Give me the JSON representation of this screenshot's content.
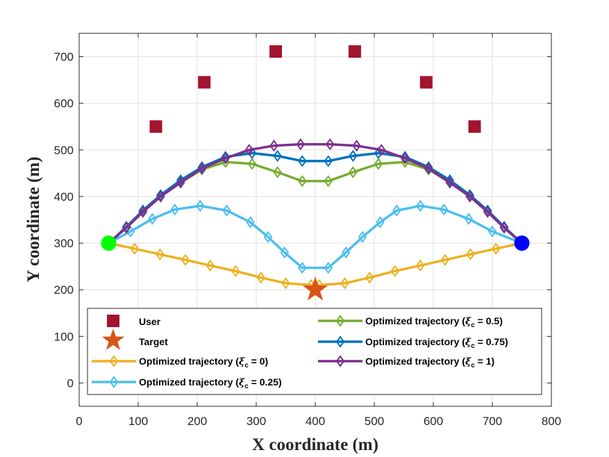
{
  "chart_data": {
    "type": "line",
    "title": "",
    "xlabel": "X coordinate (m)",
    "ylabel": "Y coordinate (m)",
    "xlim": [
      0,
      800
    ],
    "ylim": [
      -50,
      750
    ],
    "xticks": [
      0,
      100,
      200,
      300,
      400,
      500,
      600,
      700,
      800
    ],
    "yticks": [
      0,
      100,
      200,
      300,
      400,
      500,
      600,
      700
    ],
    "xtick_labels": [
      "0",
      "100",
      "200",
      "300",
      "400",
      "500",
      "600",
      "700",
      "800"
    ],
    "ytick_labels": [
      "0",
      "100",
      "200",
      "300",
      "400",
      "500",
      "600",
      "700"
    ],
    "grid": true,
    "legend_position": "bottom",
    "users": {
      "name": "User",
      "color": "#a2142f",
      "points": [
        [
          130,
          550
        ],
        [
          212,
          645
        ],
        [
          333,
          711
        ],
        [
          467,
          711
        ],
        [
          588,
          645
        ],
        [
          670,
          550
        ]
      ]
    },
    "target": {
      "name": "Target",
      "color": "#d95319",
      "point": [
        400,
        200
      ]
    },
    "start_point": {
      "point": [
        50,
        300
      ],
      "color": "#00ff00"
    },
    "end_point": {
      "point": [
        750,
        300
      ],
      "color": "#0000ff"
    },
    "series": [
      {
        "name": "Optimized trajectory (ξc = 0)",
        "label_main": "Optimized trajectory (",
        "label_xi": "ξ",
        "label_sub": "c",
        "label_tail": " = 0)",
        "color": "#edb120",
        "x": [
          50,
          94,
          137,
          180,
          222,
          265,
          308,
          350,
          393,
          407,
          450,
          492,
          535,
          578,
          620,
          663,
          706,
          750
        ],
        "y": [
          300,
          288,
          276,
          264,
          252,
          240,
          226,
          214,
          210,
          210,
          214,
          226,
          240,
          252,
          264,
          276,
          288,
          300
        ]
      },
      {
        "name": "Optimized trajectory (ξc = 0.25)",
        "label_main": "Optimized trajectory (",
        "label_xi": "ξ",
        "label_sub": "c",
        "label_tail": " = 0.25)",
        "color": "#4dbeee",
        "x": [
          50,
          87,
          124,
          162,
          205,
          250,
          290,
          320,
          348,
          378,
          422,
          452,
          480,
          510,
          538,
          578,
          618,
          660,
          700,
          750
        ],
        "y": [
          300,
          325,
          352,
          372,
          380,
          370,
          345,
          313,
          280,
          247,
          247,
          280,
          313,
          345,
          370,
          380,
          372,
          352,
          325,
          300
        ]
      },
      {
        "name": "Optimized trajectory (ξc = 0.5)",
        "label_main": "Optimized trajectory (",
        "label_xi": "ξ",
        "label_sub": "c",
        "label_tail": " = 0.5)",
        "color": "#77ac30",
        "x": [
          50,
          80,
          108,
          138,
          172,
          208,
          248,
          293,
          336,
          378,
          422,
          464,
          507,
          552,
          592,
          628,
          662,
          692,
          720,
          750
        ],
        "y": [
          300,
          333,
          367,
          400,
          430,
          458,
          474,
          470,
          452,
          433,
          433,
          452,
          470,
          474,
          458,
          430,
          400,
          367,
          333,
          300
        ]
      },
      {
        "name": "Optimized trajectory (ξc = 0.75)",
        "label_main": "Optimized trajectory (",
        "label_xi": "ξ",
        "label_sub": "c",
        "label_tail": " = 0.75)",
        "color": "#0072bd",
        "x": [
          50,
          80,
          108,
          138,
          172,
          208,
          248,
          293,
          336,
          378,
          422,
          464,
          507,
          552,
          592,
          628,
          662,
          692,
          720,
          750
        ],
        "y": [
          300,
          335,
          370,
          403,
          435,
          463,
          485,
          493,
          487,
          476,
          476,
          487,
          493,
          485,
          463,
          435,
          403,
          370,
          335,
          300
        ]
      },
      {
        "name": "Optimized trajectory (ξc = 1)",
        "label_main": "Optimized trajectory (",
        "label_xi": "ξ",
        "label_sub": "c",
        "label_tail": " = 1)",
        "color": "#7e2f8e",
        "x": [
          50,
          80,
          108,
          138,
          172,
          208,
          248,
          288,
          330,
          375,
          425,
          470,
          512,
          552,
          592,
          628,
          662,
          692,
          720,
          750
        ],
        "y": [
          300,
          333,
          367,
          400,
          430,
          460,
          482,
          500,
          509,
          512,
          512,
          509,
          500,
          482,
          460,
          430,
          400,
          367,
          333,
          300
        ]
      }
    ]
  }
}
